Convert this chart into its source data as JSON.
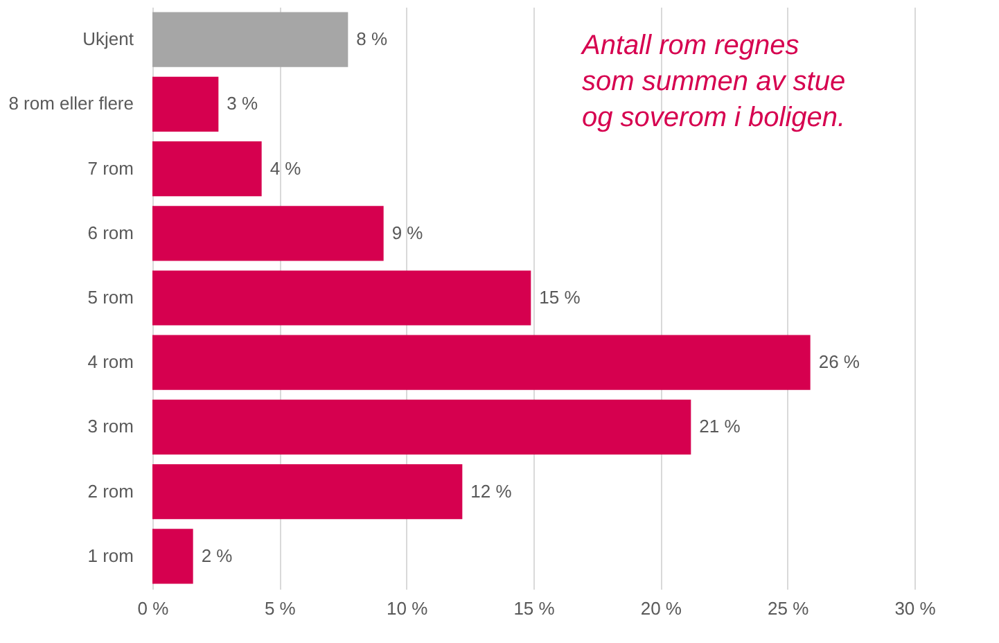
{
  "chart_data": {
    "type": "bar",
    "orientation": "horizontal",
    "categories": [
      "Ukjent",
      "8 rom eller flere",
      "7 rom",
      "6 rom",
      "5 rom",
      "4 rom",
      "3 rom",
      "2 rom",
      "1 rom"
    ],
    "values": [
      7.7,
      2.6,
      4.3,
      9.1,
      14.9,
      25.9,
      21.2,
      12.2,
      1.6
    ],
    "value_labels": [
      "8 %",
      "3 %",
      "4 %",
      "9 %",
      "15 %",
      "26 %",
      "21 %",
      "12 %",
      "2 %"
    ],
    "colors": [
      "#a6a6a6",
      "#d6004f",
      "#d6004f",
      "#d6004f",
      "#d6004f",
      "#d6004f",
      "#d6004f",
      "#d6004f",
      "#d6004f"
    ],
    "xlim": [
      0,
      30
    ],
    "xticks": [
      {
        "value": 0,
        "label": "0 %"
      },
      {
        "value": 5,
        "label": "5 %"
      },
      {
        "value": 10,
        "label": "10 %"
      },
      {
        "value": 15,
        "label": "15 %"
      },
      {
        "value": 20,
        "label": "20 %"
      },
      {
        "value": 25,
        "label": "25 %"
      },
      {
        "value": 30,
        "label": "30 %"
      }
    ],
    "grid": "x",
    "annotations": [
      "Antall rom regnes\nsom summen av stue\nog soverom i boligen."
    ]
  }
}
